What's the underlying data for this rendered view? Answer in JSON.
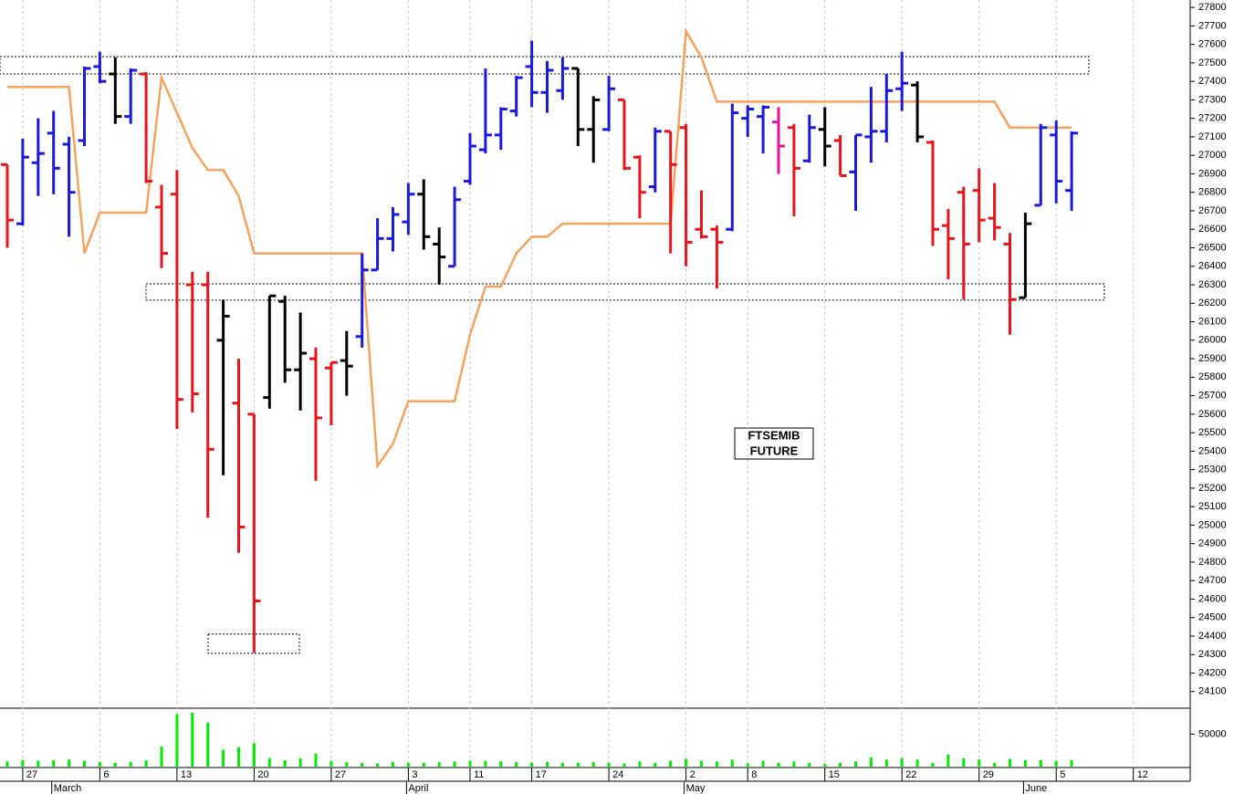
{
  "chart_data": {
    "type": "ohlc",
    "annotation": [
      "FTSEMIB",
      "FUTURE"
    ],
    "categories": [
      null,
      "27",
      null,
      null,
      null,
      null,
      "6",
      null,
      null,
      null,
      null,
      "13",
      null,
      null,
      null,
      null,
      "20",
      null,
      null,
      null,
      null,
      "27",
      null,
      null,
      null,
      null,
      "3",
      null,
      null,
      null,
      "11",
      null,
      null,
      null,
      "17",
      null,
      null,
      null,
      null,
      "24",
      null,
      null,
      null,
      null,
      "2",
      null,
      null,
      null,
      "8",
      null,
      null,
      null,
      null,
      "15",
      null,
      null,
      null,
      null,
      "22",
      null,
      null,
      null,
      null,
      "29",
      null,
      null,
      null,
      null,
      "5",
      null,
      null,
      null,
      null,
      "12",
      null,
      null,
      null
    ],
    "months": [
      null,
      null,
      null,
      "March",
      null,
      null,
      null,
      null,
      null,
      null,
      null,
      null,
      null,
      null,
      null,
      null,
      null,
      null,
      null,
      null,
      null,
      null,
      null,
      null,
      null,
      null,
      "April",
      null,
      null,
      null,
      null,
      null,
      null,
      null,
      null,
      null,
      null,
      null,
      null,
      null,
      null,
      null,
      null,
      null,
      "May",
      null,
      null,
      null,
      null,
      null,
      null,
      null,
      null,
      null,
      null,
      null,
      null,
      null,
      null,
      null,
      null,
      null,
      null,
      null,
      null,
      null,
      "June",
      null,
      null,
      null,
      null,
      null,
      null,
      null,
      null,
      null,
      null
    ],
    "open": [
      26950,
      26630,
      26960,
      27120,
      27060,
      27080,
      27480,
      27440,
      27210,
      27440,
      26720,
      26790,
      26300,
      26300,
      26000,
      25660,
      25600,
      25690,
      26210,
      25840,
      25900,
      25850,
      25890,
      26020,
      26380,
      26550,
      26640,
      26790,
      26520,
      26400,
      26860,
      27030,
      27110,
      27240,
      27480,
      27340,
      27350,
      27470,
      27140,
      27140,
      27300,
      26990,
      26830,
      27130,
      27150,
      26600,
      26600,
      26600,
      27200,
      27210,
      27180,
      27150,
      26970,
      27140,
      27080,
      26910,
      27100,
      27130,
      27360,
      27380,
      27070,
      26620,
      26800,
      26810,
      26660,
      26520,
      26230,
      26730,
      27110,
      26810,
      null,
      null,
      null,
      null,
      null,
      null,
      null
    ],
    "high": [
      26950,
      27090,
      27200,
      27240,
      27100,
      27480,
      27560,
      27530,
      27470,
      27450,
      26840,
      26920,
      26370,
      26370,
      26220,
      25900,
      25600,
      26240,
      26240,
      26150,
      25960,
      25880,
      26050,
      26470,
      26660,
      26720,
      26850,
      26870,
      26610,
      26830,
      27120,
      27470,
      27260,
      27430,
      27620,
      27510,
      27530,
      27470,
      27320,
      27430,
      27300,
      27000,
      27150,
      27130,
      27170,
      26810,
      26620,
      27280,
      27270,
      27270,
      27260,
      27170,
      27220,
      27260,
      27110,
      27110,
      27370,
      27440,
      27560,
      27400,
      27080,
      26710,
      26830,
      26930,
      26850,
      26580,
      26690,
      27170,
      27190,
      27130,
      null,
      null,
      null,
      null,
      null,
      null,
      null
    ],
    "low": [
      26500,
      26620,
      26780,
      26790,
      26560,
      27050,
      27390,
      27170,
      27170,
      26850,
      26390,
      25520,
      25610,
      25040,
      25270,
      24850,
      24310,
      25630,
      25770,
      25620,
      25240,
      25540,
      25700,
      25960,
      26380,
      26480,
      26570,
      26490,
      26300,
      26400,
      26840,
      27010,
      27030,
      27210,
      27260,
      27230,
      27300,
      27050,
      26960,
      27130,
      26920,
      26660,
      26800,
      26470,
      26400,
      26550,
      26280,
      26590,
      27100,
      27010,
      26900,
      26670,
      26960,
      26940,
      26890,
      26700,
      26960,
      27070,
      27240,
      27070,
      26510,
      26330,
      26220,
      26530,
      26540,
      26030,
      26230,
      26730,
      26740,
      26700,
      null,
      null,
      null,
      null,
      null,
      null,
      null
    ],
    "close": [
      26650,
      26990,
      27010,
      26930,
      26800,
      27470,
      27400,
      27210,
      27460,
      26860,
      26470,
      25680,
      25710,
      25410,
      26130,
      24990,
      24590,
      26240,
      25840,
      25930,
      25580,
      25880,
      25860,
      26380,
      26550,
      26680,
      26790,
      26560,
      26450,
      26760,
      27050,
      27110,
      27250,
      27420,
      27340,
      27460,
      27470,
      27140,
      27300,
      27360,
      26930,
      26800,
      27130,
      26950,
      26530,
      26560,
      26530,
      27230,
      27250,
      27260,
      27050,
      26930,
      27150,
      27050,
      26890,
      27110,
      27130,
      27350,
      27390,
      27100,
      26600,
      26550,
      26520,
      26650,
      26610,
      26220,
      26630,
      27150,
      26860,
      27120,
      null,
      null,
      null,
      null,
      null,
      null,
      null
    ],
    "bar_colors": [
      "#e8141b",
      "#1a1adb",
      "#1a1adb",
      "#1a1adb",
      "#1a1adb",
      "#1a1adb",
      "#1a1adb",
      "#000000",
      "#1a1adb",
      "#e8141b",
      "#e8141b",
      "#e8141b",
      "#e8141b",
      "#e8141b",
      "#000000",
      "#e8141b",
      "#e8141b",
      "#000000",
      "#000000",
      "#000000",
      "#e8141b",
      "#e8141b",
      "#000000",
      "#1a1adb",
      "#1a1adb",
      "#1a1adb",
      "#1a1adb",
      "#000000",
      "#000000",
      "#1a1adb",
      "#1a1adb",
      "#1a1adb",
      "#1a1adb",
      "#1a1adb",
      "#1a1adb",
      "#1a1adb",
      "#1a1adb",
      "#000000",
      "#000000",
      "#1a1adb",
      "#e8141b",
      "#e8141b",
      "#1a1adb",
      "#e8141b",
      "#e8141b",
      "#e8141b",
      "#e8141b",
      "#1a1adb",
      "#1a1adb",
      "#1a1adb",
      "#e6139a",
      "#e8141b",
      "#1a1adb",
      "#000000",
      "#e8141b",
      "#1a1adb",
      "#1a1adb",
      "#1a1adb",
      "#1a1adb",
      "#000000",
      "#e8141b",
      "#e8141b",
      "#e8141b",
      "#e8141b",
      "#e8141b",
      "#e8141b",
      "#000000",
      "#1a1adb",
      "#1a1adb",
      "#1a1adb",
      null,
      null,
      null,
      null,
      null,
      null,
      null
    ],
    "line": {
      "color": "#f5a35c",
      "values": [
        27370,
        27370,
        27370,
        27370,
        27370,
        26470,
        26690,
        26690,
        26690,
        26690,
        27420,
        27230,
        27040,
        26920,
        26920,
        26780,
        26470,
        26470,
        26470,
        26470,
        26470,
        26470,
        26470,
        26470,
        25320,
        25440,
        25670,
        25670,
        25670,
        25670,
        26030,
        26290,
        26290,
        26470,
        26560,
        26560,
        26630,
        26630,
        26630,
        26630,
        26630,
        26630,
        26630,
        26630,
        27670,
        27530,
        27290,
        27290,
        27290,
        27290,
        27290,
        27290,
        27290,
        27290,
        27290,
        27290,
        27290,
        27290,
        27290,
        27290,
        27290,
        27290,
        27290,
        27290,
        27290,
        27150,
        27150,
        27150,
        27150,
        27150,
        null,
        null,
        null,
        null,
        null,
        null,
        null
      ]
    },
    "volume": {
      "color": "#00ee00",
      "ylim": [
        0,
        90000
      ],
      "yticks": [
        50000
      ],
      "values": [
        8000,
        10000,
        9000,
        10000,
        11000,
        9000,
        7000,
        6000,
        7000,
        10000,
        31000,
        81000,
        83000,
        68000,
        26000,
        30000,
        36000,
        13000,
        10000,
        13000,
        20000,
        9000,
        7000,
        6000,
        5000,
        7000,
        6000,
        6000,
        7000,
        8000,
        9000,
        9000,
        8000,
        7000,
        6000,
        7000,
        6000,
        6000,
        7000,
        6000,
        5000,
        8000,
        6000,
        9000,
        12000,
        9000,
        8000,
        11000,
        5000,
        9000,
        6000,
        8000,
        6000,
        4000,
        6000,
        8000,
        14000,
        11000,
        13000,
        11000,
        6000,
        19000,
        13000,
        11000,
        6000,
        12000,
        10000,
        10000,
        9000,
        10000,
        null,
        null,
        null,
        null,
        null,
        null,
        null
      ]
    },
    "zones": [
      {
        "low": 27440,
        "high": 27534
      },
      {
        "low": 26217,
        "high": 26305
      },
      {
        "low": 24307,
        "high": 24411
      }
    ],
    "ylim": [
      24010,
      27840
    ],
    "yticks": [
      24100,
      24200,
      24300,
      24400,
      24500,
      24600,
      24700,
      24800,
      24900,
      25000,
      25100,
      25200,
      25300,
      25400,
      25500,
      25600,
      25700,
      25800,
      25900,
      26000,
      26100,
      26200,
      26300,
      26400,
      26500,
      26600,
      26700,
      26800,
      26900,
      27000,
      27100,
      27200,
      27300,
      27400,
      27500,
      27600,
      27700,
      27800
    ],
    "grid": true
  }
}
